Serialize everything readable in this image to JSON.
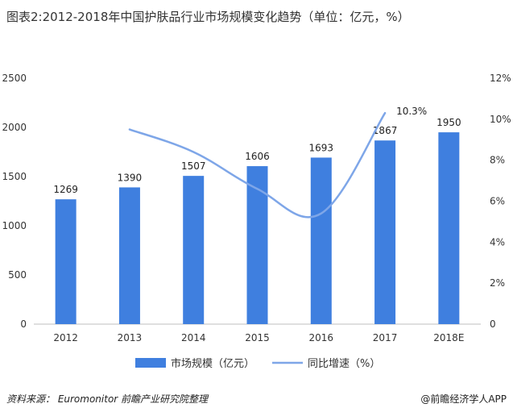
{
  "title": "图表2:2012-2018年中国护肤品行业市场规模变化趋势（单位：亿元，%）",
  "source": "资料来源：  Euromonitor  前瞻产业研究院整理",
  "credit": "@前瞻经济学人APP",
  "colors": {
    "bar": "#3f7fdf",
    "line": "#7ea6e8"
  },
  "chart_data": {
    "type": "bar",
    "categories": [
      "2012",
      "2013",
      "2014",
      "2015",
      "2016",
      "2017",
      "2018E"
    ],
    "series": [
      {
        "name": "市场规模（亿元）",
        "type": "bar",
        "axis": "left",
        "values": [
          1269,
          1390,
          1507,
          1606,
          1693,
          1867,
          1950
        ]
      },
      {
        "name": "同比增速（%）",
        "type": "line",
        "axis": "right",
        "values": [
          null,
          9.5,
          8.4,
          6.6,
          5.4,
          10.3,
          null
        ]
      }
    ],
    "bar_value_labels": [
      "1269",
      "1390",
      "1507",
      "1606",
      "1693",
      "1867",
      "1950"
    ],
    "line_annotation": "10.3%",
    "y_left": {
      "ylim": [
        0,
        2500
      ],
      "ticks": [
        "0",
        "500",
        "1000",
        "1500",
        "2000",
        "2500"
      ]
    },
    "y_right": {
      "ylim": [
        0,
        12
      ],
      "ticks": [
        "0",
        "2%",
        "4%",
        "6%",
        "8%",
        "10%",
        "12%"
      ]
    },
    "grid": false,
    "legend": "bottom"
  }
}
